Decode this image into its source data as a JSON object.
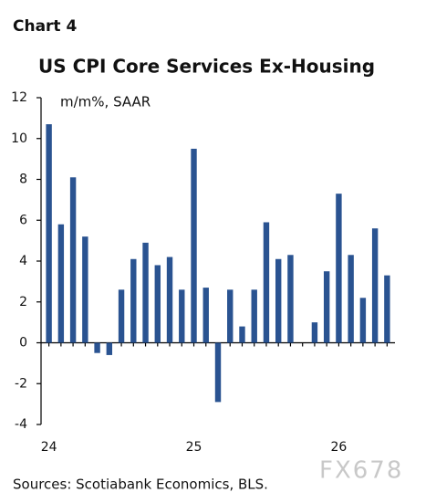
{
  "header": {
    "label": "Chart 4"
  },
  "chart_data": {
    "type": "bar",
    "title": "US CPI Core Services Ex-Housing",
    "y_label": "m/m%, SAAR",
    "categories": [
      "24",
      null,
      null,
      null,
      null,
      null,
      null,
      null,
      null,
      null,
      null,
      null,
      "25",
      null,
      null,
      null,
      null,
      null,
      null,
      null,
      null,
      null,
      null,
      null,
      "26",
      null,
      null,
      null,
      null
    ],
    "values": [
      10.7,
      5.8,
      8.1,
      5.2,
      -0.5,
      -0.6,
      2.6,
      4.1,
      4.9,
      3.8,
      4.2,
      2.6,
      9.5,
      2.7,
      -2.9,
      2.6,
      0.8,
      2.6,
      5.9,
      4.1,
      4.3,
      null,
      1.0,
      3.5,
      7.3,
      4.3,
      2.2,
      5.6,
      3.3
    ],
    "color": "#2a5391",
    "ylim": [
      -4,
      12
    ],
    "yticks": [
      -4,
      -2,
      0,
      2,
      4,
      6,
      8,
      10,
      12
    ],
    "grid": false
  },
  "footer": {
    "source": "Sources: Scotiabank Economics, BLS.",
    "watermark": "FX678"
  }
}
